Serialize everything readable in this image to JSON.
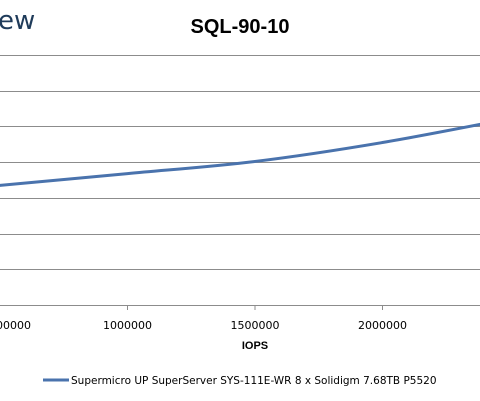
{
  "logo": {
    "fragment": "ew"
  },
  "chart_data": {
    "type": "line",
    "title": "SQL-90-10",
    "xlabel": "IOPS",
    "ylabel": "",
    "xticks": [
      1000000,
      1500000,
      2000000
    ],
    "xtick_labels": [
      "1000000",
      "1500000",
      "2000000"
    ],
    "left_tick_fragment": "00000",
    "xlim": [
      500000,
      2500000
    ],
    "ylim": [
      0,
      7
    ],
    "grid": true,
    "legend_position": "bottom",
    "series": [
      {
        "name": "Supermicro UP SuperServer SYS-111E-WR 8 x Solidigm 7.68TB P5520",
        "color": "#4a73ad",
        "x": [
          500000,
          1000000,
          1500000,
          2000000,
          2500000
        ],
        "y": [
          3.35,
          3.68,
          4.02,
          4.55,
          5.22
        ]
      }
    ]
  }
}
